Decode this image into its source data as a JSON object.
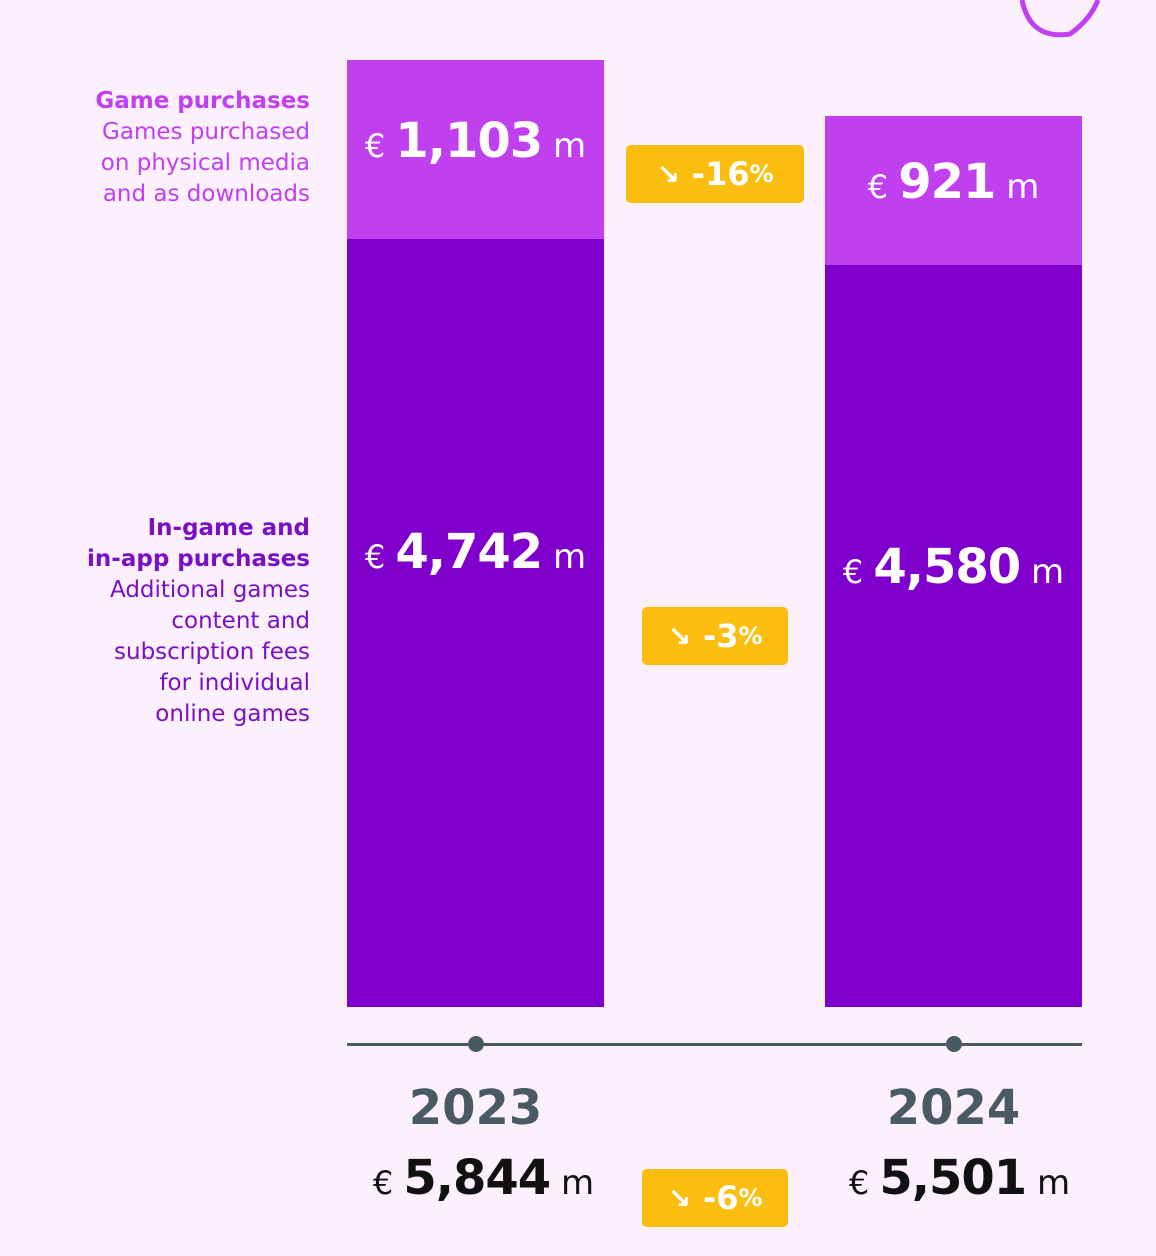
{
  "colors": {
    "background": "#fbf0fb",
    "game_purchases": "#c040f0",
    "in_game_purchases": "#7f00cc",
    "badge": "#fbbd0e",
    "axis": "#4a5a64"
  },
  "currency_symbol": "€",
  "unit_label": "m",
  "chart_data": {
    "type": "bar",
    "stacked": true,
    "categories": [
      "2023",
      "2024"
    ],
    "series": [
      {
        "name": "In-game and in-app purchases",
        "description": "Additional games content and subscription fees for individual online games",
        "values": [
          4742,
          4580
        ],
        "labels": [
          "4,742",
          "4,580"
        ]
      },
      {
        "name": "Game purchases",
        "description": "Games purchased on physical media and as downloads",
        "values": [
          1103,
          921
        ],
        "labels": [
          "1,103",
          "921"
        ]
      }
    ],
    "totals": [
      5844,
      5501
    ],
    "total_labels": [
      "5,844",
      "5,501"
    ],
    "changes": {
      "game_purchases": "-16",
      "in_game_purchases": "-3",
      "total": "-6"
    },
    "change_symbol": "%",
    "change_icon": "arrow-down-right-icon",
    "ylim": [
      0,
      5845
    ]
  },
  "legend": {
    "game": {
      "title": "Game purchases",
      "lines": [
        "Games purchased",
        "on physical media",
        "and as downloads"
      ]
    },
    "inapp": {
      "title_lines": [
        "In-game and",
        "in-app purchases"
      ],
      "lines": [
        "Additional games",
        "content and",
        "subscription fees",
        "for individual",
        "online games"
      ]
    }
  }
}
